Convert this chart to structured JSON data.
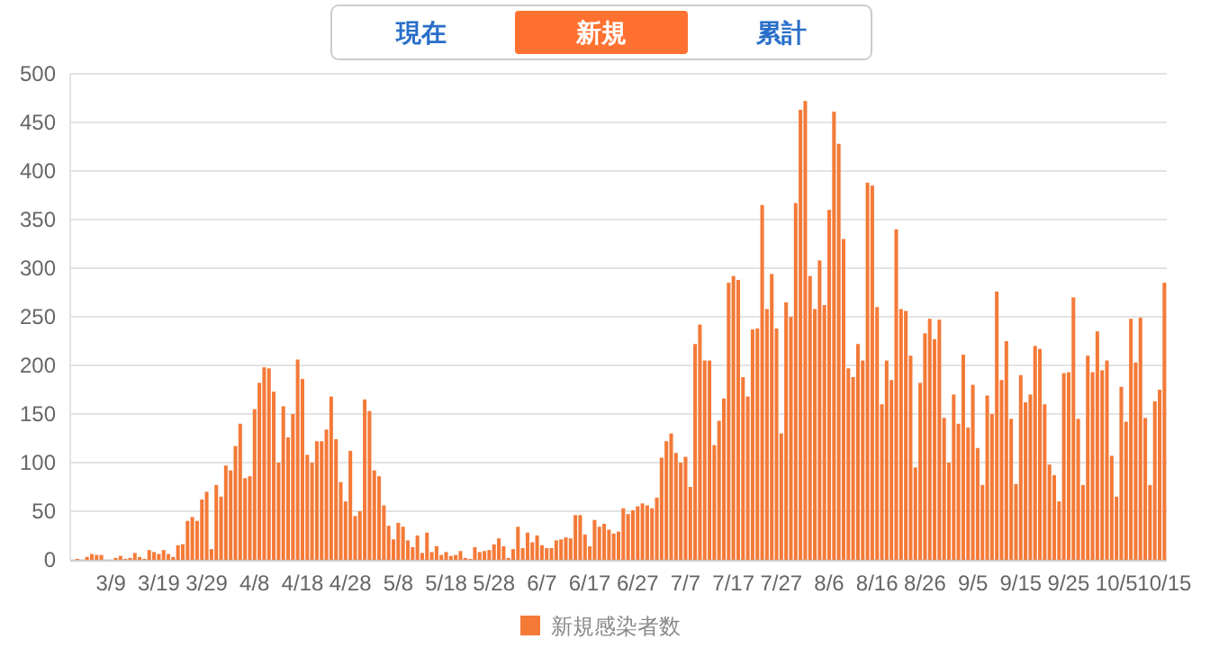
{
  "chart_data": {
    "type": "bar",
    "annotations": [
      "現在",
      "新規",
      "累計"
    ],
    "categories": [
      null,
      null,
      null,
      null,
      null,
      null,
      null,
      null,
      "3/9",
      null,
      null,
      null,
      null,
      null,
      null,
      null,
      null,
      null,
      "3/19",
      null,
      null,
      null,
      null,
      null,
      null,
      null,
      null,
      null,
      "3/29",
      null,
      null,
      null,
      null,
      null,
      null,
      null,
      null,
      null,
      "4/8",
      null,
      null,
      null,
      null,
      null,
      null,
      null,
      null,
      null,
      "4/18",
      null,
      null,
      null,
      null,
      null,
      null,
      null,
      null,
      null,
      "4/28",
      null,
      null,
      null,
      null,
      null,
      null,
      null,
      null,
      null,
      "5/8",
      null,
      null,
      null,
      null,
      null,
      null,
      null,
      null,
      null,
      "5/18",
      null,
      null,
      null,
      null,
      null,
      null,
      null,
      null,
      null,
      "5/28",
      null,
      null,
      null,
      null,
      null,
      null,
      null,
      null,
      null,
      "6/7",
      null,
      null,
      null,
      null,
      null,
      null,
      null,
      null,
      null,
      "6/17",
      null,
      null,
      null,
      null,
      null,
      null,
      null,
      null,
      null,
      "6/27",
      null,
      null,
      null,
      null,
      null,
      null,
      null,
      null,
      null,
      "7/7",
      null,
      null,
      null,
      null,
      null,
      null,
      null,
      null,
      null,
      "7/17",
      null,
      null,
      null,
      null,
      null,
      null,
      null,
      null,
      null,
      "7/27",
      null,
      null,
      null,
      null,
      null,
      null,
      null,
      null,
      null,
      "8/6",
      null,
      null,
      null,
      null,
      null,
      null,
      null,
      null,
      null,
      "8/16",
      null,
      null,
      null,
      null,
      null,
      null,
      null,
      null,
      null,
      "8/26",
      null,
      null,
      null,
      null,
      null,
      null,
      null,
      null,
      null,
      "9/5",
      null,
      null,
      null,
      null,
      null,
      null,
      null,
      null,
      null,
      "9/15",
      null,
      null,
      null,
      null,
      null,
      null,
      null,
      null,
      null,
      "9/25",
      null,
      null,
      null,
      null,
      null,
      null,
      null,
      null,
      null,
      "10/5",
      null,
      null,
      null,
      null,
      null,
      null,
      null,
      null,
      null,
      "10/15"
    ],
    "series": [
      {
        "name": "新規感染者数",
        "color": "#f47a38",
        "values": [
          0,
          1,
          0,
          3,
          6,
          5,
          5,
          0,
          0,
          2,
          4,
          1,
          2,
          7,
          3,
          1,
          10,
          8,
          6,
          10,
          6,
          3,
          15,
          16,
          40,
          44,
          40,
          62,
          70,
          11,
          77,
          65,
          97,
          92,
          117,
          140,
          84,
          86,
          155,
          182,
          198,
          197,
          173,
          100,
          158,
          126,
          150,
          206,
          186,
          108,
          100,
          122,
          122,
          134,
          168,
          124,
          80,
          60,
          112,
          45,
          50,
          165,
          153,
          92,
          86,
          56,
          35,
          21,
          38,
          34,
          20,
          13,
          25,
          7,
          28,
          8,
          14,
          5,
          8,
          4,
          5,
          9,
          2,
          1,
          13,
          8,
          9,
          10,
          16,
          22,
          14,
          2,
          11,
          34,
          12,
          28,
          18,
          25,
          15,
          12,
          12,
          20,
          21,
          23,
          22,
          46,
          46,
          26,
          14,
          41,
          34,
          37,
          31,
          27,
          29,
          53,
          47,
          51,
          55,
          58,
          56,
          53,
          64,
          105,
          122,
          130,
          110,
          100,
          106,
          75,
          222,
          242,
          205,
          205,
          118,
          143,
          166,
          285,
          292,
          288,
          188,
          168,
          237,
          238,
          365,
          258,
          294,
          238,
          130,
          265,
          250,
          367,
          463,
          472,
          292,
          258,
          308,
          262,
          360,
          461,
          428,
          330,
          197,
          188,
          222,
          205,
          388,
          385,
          260,
          160,
          205,
          185,
          340,
          258,
          256,
          210,
          95,
          182,
          233,
          248,
          227,
          247,
          146,
          100,
          170,
          140,
          211,
          136,
          180,
          115,
          77,
          169,
          150,
          276,
          185,
          225,
          145,
          78,
          190,
          162,
          170,
          220,
          217,
          160,
          98,
          87,
          60,
          192,
          193,
          270,
          145,
          77,
          210,
          193,
          235,
          195,
          205,
          107,
          65,
          178,
          142,
          248,
          203,
          249,
          146,
          77,
          163,
          175,
          285
        ]
      }
    ],
    "ylim": [
      0,
      500
    ],
    "yticks": [
      0,
      50,
      100,
      150,
      200,
      250,
      300,
      350,
      400,
      450,
      500
    ],
    "grid": "y",
    "legend": "bottom"
  }
}
